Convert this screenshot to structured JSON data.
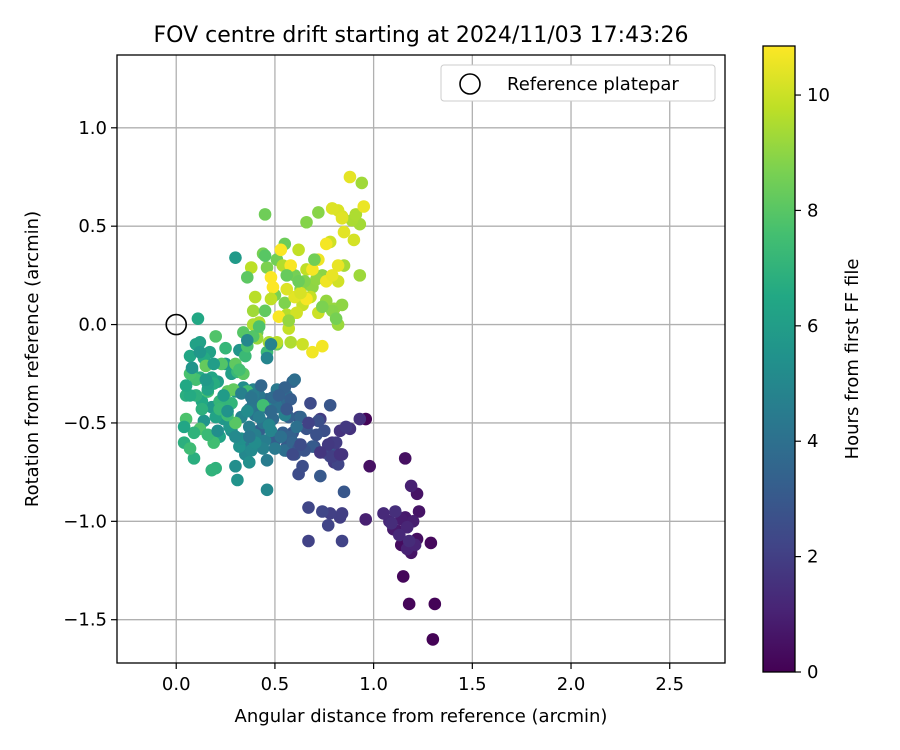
{
  "chart_data": {
    "type": "scatter",
    "title": "FOV centre drift starting at 2024/11/03 17:43:26",
    "xlabel": "Angular distance from reference (arcmin)",
    "ylabel": "Rotation from reference (arcmin)",
    "xlim": [
      -0.3,
      2.78
    ],
    "ylim": [
      -1.72,
      1.37
    ],
    "xticks": [
      0.0,
      0.5,
      1.0,
      1.5,
      2.0,
      2.5
    ],
    "xtick_labels": [
      "0.0",
      "0.5",
      "1.0",
      "1.5",
      "2.0",
      "2.5"
    ],
    "yticks": [
      1.0,
      0.5,
      0.0,
      -0.5,
      -1.0,
      -1.5
    ],
    "ytick_labels": [
      "1.0",
      "0.5",
      "0.0",
      "−0.5",
      "−1.0",
      "−1.5"
    ],
    "grid": true,
    "legend": {
      "position": "top-right",
      "entries": [
        "Reference platepar"
      ]
    },
    "reference": {
      "x": 0.0,
      "y": 0.0,
      "label": "Reference platepar"
    },
    "colorbar": {
      "label": "Hours from first FF file",
      "range": [
        0,
        10.85
      ],
      "ticks": [
        0,
        2,
        4,
        6,
        8,
        10
      ],
      "tick_labels": [
        "0",
        "2",
        "4",
        "6",
        "8",
        "10"
      ],
      "colormap": "viridis"
    },
    "points": [
      [
        0.96,
        -0.48,
        0.1
      ],
      [
        1.3,
        -1.6,
        0.05
      ],
      [
        1.31,
        -1.42,
        0.1
      ],
      [
        1.18,
        -1.42,
        0.15
      ],
      [
        1.15,
        -1.28,
        0.2
      ],
      [
        1.29,
        -1.11,
        0.25
      ],
      [
        1.2,
        -1.12,
        0.3
      ],
      [
        1.14,
        -1.12,
        0.35
      ],
      [
        1.22,
        -1.09,
        0.4
      ],
      [
        1.16,
        -0.68,
        0.45
      ],
      [
        0.98,
        -0.72,
        0.5
      ],
      [
        1.22,
        -0.86,
        0.55
      ],
      [
        1.23,
        -0.95,
        0.6
      ],
      [
        1.19,
        -1.16,
        0.6
      ],
      [
        1.12,
        -1.05,
        0.7
      ],
      [
        1.16,
        -0.98,
        0.75
      ],
      [
        1.1,
        -1.04,
        0.8
      ],
      [
        1.14,
        -0.99,
        0.85
      ],
      [
        1.2,
        -1.0,
        0.9
      ],
      [
        0.96,
        -0.99,
        0.95
      ],
      [
        1.19,
        -0.82,
        1.0
      ],
      [
        1.17,
        -1.14,
        1.05
      ],
      [
        1.21,
        -1.12,
        1.1
      ],
      [
        1.17,
        -1.03,
        1.15
      ],
      [
        1.08,
        -1.0,
        1.2
      ],
      [
        1.13,
        -1.07,
        1.25
      ],
      [
        1.05,
        -0.96,
        1.3
      ],
      [
        1.18,
        -1.1,
        1.35
      ],
      [
        1.09,
        -1.01,
        1.4
      ],
      [
        1.11,
        -0.95,
        1.45
      ],
      [
        0.93,
        -0.48,
        1.5
      ],
      [
        0.88,
        -0.53,
        1.55
      ],
      [
        0.83,
        -0.54,
        1.6
      ],
      [
        0.84,
        -0.66,
        1.65
      ],
      [
        0.79,
        -0.6,
        1.7
      ],
      [
        0.75,
        -0.65,
        1.75
      ],
      [
        0.86,
        -0.52,
        1.8
      ],
      [
        0.8,
        -0.7,
        1.85
      ],
      [
        0.73,
        -0.48,
        1.9
      ],
      [
        0.83,
        -0.98,
        1.95
      ],
      [
        0.84,
        -0.96,
        2.0
      ],
      [
        0.78,
        -0.96,
        2.05
      ],
      [
        0.67,
        -1.1,
        2.1
      ],
      [
        0.84,
        -1.1,
        2.15
      ],
      [
        0.77,
        -1.02,
        2.2
      ],
      [
        0.67,
        -0.93,
        2.25
      ],
      [
        0.74,
        -0.95,
        2.3
      ],
      [
        0.82,
        -0.71,
        2.35
      ],
      [
        0.8,
        -0.65,
        2.4
      ],
      [
        0.68,
        -0.4,
        2.45
      ],
      [
        0.62,
        -0.76,
        2.5
      ],
      [
        0.64,
        -0.72,
        2.55
      ],
      [
        0.75,
        -0.54,
        2.6
      ],
      [
        0.7,
        -0.62,
        2.65
      ],
      [
        0.59,
        -0.55,
        2.7
      ],
      [
        0.62,
        -0.47,
        2.75
      ],
      [
        0.66,
        -0.53,
        2.8
      ],
      [
        0.6,
        -0.66,
        2.85
      ],
      [
        0.78,
        -0.41,
        2.9
      ],
      [
        0.85,
        -0.85,
        2.95
      ],
      [
        0.73,
        -0.77,
        3.0
      ],
      [
        0.77,
        -0.65,
        3.05
      ],
      [
        0.56,
        -0.62,
        3.1
      ],
      [
        0.62,
        -0.61,
        3.15
      ],
      [
        0.5,
        -0.59,
        3.2
      ],
      [
        0.54,
        -0.55,
        3.25
      ],
      [
        0.42,
        -0.54,
        3.3
      ],
      [
        0.57,
        -0.47,
        3.35
      ],
      [
        0.58,
        -0.57,
        3.4
      ],
      [
        0.59,
        -0.29,
        3.45
      ],
      [
        0.63,
        -0.47,
        3.5
      ],
      [
        0.55,
        -0.42,
        3.55
      ],
      [
        0.48,
        -0.38,
        3.6
      ],
      [
        0.53,
        -0.4,
        3.65
      ],
      [
        0.46,
        -0.38,
        3.7
      ],
      [
        0.49,
        -0.48,
        3.75
      ],
      [
        0.51,
        -0.36,
        3.8
      ],
      [
        0.56,
        -0.36,
        3.85
      ],
      [
        0.6,
        -0.28,
        3.9
      ],
      [
        0.55,
        -0.64,
        3.95
      ],
      [
        0.61,
        -0.52,
        4.0
      ],
      [
        0.43,
        -0.42,
        4.05
      ],
      [
        0.4,
        -0.46,
        4.1
      ],
      [
        0.44,
        -0.5,
        4.15
      ],
      [
        0.39,
        -0.4,
        4.2
      ],
      [
        0.42,
        -0.36,
        4.25
      ],
      [
        0.37,
        -0.43,
        4.3
      ],
      [
        0.47,
        -0.43,
        4.35
      ],
      [
        0.51,
        -0.33,
        4.4
      ],
      [
        0.36,
        -0.62,
        4.45
      ],
      [
        0.46,
        -0.69,
        4.5
      ],
      [
        0.45,
        -0.59,
        4.55
      ],
      [
        0.37,
        -0.52,
        4.6
      ],
      [
        0.4,
        -0.56,
        4.65
      ],
      [
        0.55,
        -0.46,
        4.7
      ],
      [
        0.44,
        -0.63,
        4.75
      ],
      [
        0.39,
        -0.33,
        4.8
      ],
      [
        0.48,
        -0.54,
        4.85
      ],
      [
        0.33,
        -0.47,
        4.9
      ],
      [
        0.47,
        -0.51,
        4.95
      ],
      [
        0.46,
        -0.84,
        5.0
      ],
      [
        0.35,
        -0.66,
        5.05
      ],
      [
        0.38,
        -0.64,
        5.1
      ],
      [
        0.5,
        -0.4,
        5.15
      ],
      [
        0.4,
        -0.6,
        5.2
      ],
      [
        0.34,
        -0.32,
        5.25
      ],
      [
        0.3,
        -0.72,
        5.3
      ],
      [
        0.37,
        -0.7,
        5.35
      ],
      [
        0.28,
        -0.54,
        5.4
      ],
      [
        0.32,
        -0.62,
        5.45
      ],
      [
        0.31,
        -0.79,
        5.5
      ],
      [
        0.32,
        -0.13,
        5.55
      ],
      [
        0.14,
        -0.49,
        5.6
      ],
      [
        0.24,
        -0.48,
        5.65
      ],
      [
        0.21,
        -0.41,
        5.7
      ],
      [
        0.27,
        -0.52,
        5.75
      ],
      [
        0.18,
        -0.42,
        5.8
      ],
      [
        0.3,
        0.34,
        5.85
      ],
      [
        0.25,
        -0.2,
        5.9
      ],
      [
        0.3,
        -0.34,
        5.95
      ],
      [
        0.21,
        -0.29,
        6.0
      ],
      [
        0.28,
        -0.25,
        6.05
      ],
      [
        0.16,
        -0.34,
        6.1
      ],
      [
        0.12,
        -0.09,
        6.15
      ],
      [
        0.17,
        -0.14,
        6.2
      ],
      [
        0.2,
        -0.47,
        6.25
      ],
      [
        0.22,
        -0.57,
        6.3
      ],
      [
        0.18,
        -0.27,
        6.35
      ],
      [
        0.07,
        -0.16,
        6.4
      ],
      [
        0.11,
        0.03,
        6.45
      ],
      [
        0.13,
        -0.39,
        6.5
      ],
      [
        0.08,
        -0.23,
        6.55
      ],
      [
        0.14,
        -0.17,
        6.6
      ],
      [
        0.19,
        -0.3,
        6.7
      ],
      [
        0.12,
        -0.27,
        6.75
      ],
      [
        0.09,
        -0.68,
        6.8
      ],
      [
        0.04,
        -0.6,
        6.85
      ],
      [
        0.1,
        -0.36,
        6.9
      ],
      [
        0.2,
        -0.73,
        6.95
      ],
      [
        0.18,
        -0.74,
        7.0
      ],
      [
        0.24,
        -0.43,
        7.05
      ],
      [
        0.22,
        -0.39,
        7.1
      ],
      [
        0.25,
        -0.12,
        7.15
      ],
      [
        0.31,
        -0.24,
        7.2
      ],
      [
        0.35,
        -0.16,
        7.3
      ],
      [
        0.46,
        -0.14,
        7.35
      ],
      [
        0.07,
        -0.63,
        7.4
      ],
      [
        0.36,
        -0.34,
        7.45
      ],
      [
        0.19,
        -0.6,
        7.5
      ],
      [
        0.16,
        -0.34,
        7.55
      ],
      [
        0.1,
        -0.28,
        7.6
      ],
      [
        0.07,
        -0.25,
        7.7
      ],
      [
        0.05,
        -0.48,
        7.75
      ],
      [
        0.12,
        -0.53,
        7.8
      ],
      [
        0.2,
        -0.06,
        7.85
      ],
      [
        0.23,
        -0.2,
        7.9
      ],
      [
        0.34,
        -0.04,
        7.95
      ],
      [
        0.3,
        -0.5,
        8.0
      ],
      [
        0.34,
        -0.25,
        8.05
      ],
      [
        0.26,
        -0.34,
        8.1
      ],
      [
        0.3,
        -0.2,
        8.15
      ],
      [
        0.29,
        -0.33,
        8.2
      ],
      [
        0.15,
        -0.21,
        8.25
      ],
      [
        0.41,
        -0.04,
        8.3
      ],
      [
        0.51,
        -0.1,
        8.35
      ],
      [
        0.55,
        0.41,
        8.4
      ],
      [
        0.45,
        0.56,
        8.45
      ],
      [
        0.51,
        0.33,
        8.5
      ],
      [
        0.6,
        0.25,
        8.55
      ],
      [
        0.44,
        0.36,
        8.6
      ],
      [
        0.5,
        0.15,
        8.65
      ],
      [
        0.46,
        0.29,
        8.7
      ],
      [
        0.55,
        0.11,
        8.75
      ],
      [
        0.63,
        0.18,
        8.8
      ],
      [
        0.66,
        0.52,
        8.85
      ],
      [
        0.72,
        0.57,
        8.9
      ],
      [
        0.74,
        0.25,
        8.95
      ],
      [
        0.69,
        0.19,
        9.0
      ],
      [
        0.71,
        0.23,
        9.05
      ],
      [
        0.76,
        0.12,
        9.1
      ],
      [
        0.8,
        0.08,
        9.15
      ],
      [
        0.82,
        0.0,
        9.2
      ],
      [
        0.93,
        0.25,
        9.25
      ],
      [
        0.94,
        0.72,
        9.3
      ],
      [
        0.93,
        0.51,
        9.35
      ],
      [
        0.85,
        0.3,
        9.4
      ],
      [
        0.89,
        0.53,
        9.45
      ],
      [
        0.91,
        0.56,
        9.5
      ],
      [
        0.58,
        -0.09,
        9.55
      ],
      [
        0.54,
        0.3,
        9.6
      ],
      [
        0.56,
        0.05,
        9.65
      ],
      [
        0.51,
        -0.09,
        9.7
      ],
      [
        0.38,
        0.29,
        9.75
      ],
      [
        0.66,
        0.28,
        9.8
      ],
      [
        0.62,
        0.38,
        9.85
      ],
      [
        0.68,
        0.14,
        9.9
      ],
      [
        0.64,
        0.1,
        9.95
      ],
      [
        0.72,
        0.06,
        10.0
      ],
      [
        0.78,
        0.42,
        10.05
      ],
      [
        0.82,
        0.22,
        10.1
      ],
      [
        0.9,
        0.43,
        10.15
      ],
      [
        0.84,
        0.55,
        10.2
      ],
      [
        0.82,
        0.58,
        10.25
      ],
      [
        0.79,
        0.59,
        10.3
      ],
      [
        0.84,
        0.54,
        10.35
      ],
      [
        0.85,
        0.47,
        10.4
      ],
      [
        0.88,
        0.75,
        10.45
      ],
      [
        0.82,
        0.3,
        10.5
      ],
      [
        0.95,
        0.6,
        10.55
      ],
      [
        0.72,
        0.33,
        10.6
      ],
      [
        0.76,
        0.22,
        10.62
      ],
      [
        0.69,
        -0.14,
        10.65
      ],
      [
        0.74,
        -0.11,
        10.68
      ],
      [
        0.76,
        0.41,
        10.7
      ],
      [
        0.69,
        0.28,
        10.72
      ],
      [
        0.66,
        0.13,
        10.75
      ],
      [
        0.58,
        0.3,
        10.77
      ],
      [
        0.52,
        0.04,
        10.79
      ],
      [
        0.53,
        0.38,
        10.8
      ],
      [
        0.48,
        0.24,
        10.82
      ],
      [
        0.49,
        0.19,
        10.84
      ],
      [
        0.79,
        0.25,
        10.5
      ],
      [
        0.6,
        0.14,
        10.4
      ],
      [
        0.56,
        0.18,
        10.3
      ],
      [
        0.63,
        0.16,
        10.2
      ],
      [
        0.61,
        0.06,
        10.1
      ],
      [
        0.64,
        -0.1,
        10.0
      ],
      [
        0.57,
        -0.02,
        9.9
      ],
      [
        0.48,
        0.13,
        9.8
      ],
      [
        0.4,
        0.14,
        9.7
      ],
      [
        0.42,
        0.01,
        9.6
      ],
      [
        0.39,
        0.0,
        9.5
      ],
      [
        0.47,
        -0.09,
        9.4
      ],
      [
        0.39,
        0.07,
        9.3
      ],
      [
        0.41,
        -0.07,
        9.2
      ],
      [
        0.57,
        0.02,
        9.1
      ],
      [
        0.84,
        0.1,
        9.0
      ],
      [
        0.79,
        0.07,
        8.9
      ],
      [
        0.65,
        0.22,
        8.8
      ],
      [
        0.74,
        0.09,
        8.7
      ],
      [
        0.81,
        0.03,
        8.6
      ],
      [
        0.7,
        0.33,
        8.5
      ],
      [
        0.62,
        0.22,
        8.4
      ],
      [
        0.56,
        0.25,
        8.3
      ],
      [
        0.45,
        0.07,
        8.2
      ],
      [
        0.36,
        0.24,
        8.1
      ],
      [
        0.45,
        0.35,
        8.0
      ],
      [
        0.39,
        -0.06,
        7.9
      ],
      [
        0.42,
        -0.01,
        7.8
      ],
      [
        0.36,
        -0.11,
        7.7
      ],
      [
        0.32,
        -0.23,
        7.6
      ],
      [
        0.44,
        -0.41,
        7.5
      ],
      [
        0.26,
        -0.46,
        7.4
      ],
      [
        0.16,
        -0.56,
        7.3
      ],
      [
        0.22,
        -0.43,
        7.2
      ],
      [
        0.28,
        -0.4,
        7.1
      ],
      [
        0.09,
        -0.55,
        7.0
      ],
      [
        0.13,
        -0.43,
        6.9
      ],
      [
        0.05,
        -0.36,
        6.8
      ],
      [
        0.07,
        -0.36,
        6.6
      ],
      [
        0.05,
        -0.31,
        6.5
      ],
      [
        0.04,
        -0.52,
        6.4
      ],
      [
        0.16,
        -0.33,
        6.3
      ],
      [
        0.1,
        -0.1,
        6.2
      ],
      [
        0.16,
        -0.3,
        6.1
      ],
      [
        0.19,
        -0.2,
        6.0
      ],
      [
        0.24,
        -0.36,
        5.9
      ],
      [
        0.15,
        -0.28,
        5.8
      ],
      [
        0.12,
        -0.14,
        5.7
      ],
      [
        0.08,
        -0.22,
        5.6
      ],
      [
        0.26,
        -0.44,
        5.5
      ],
      [
        0.33,
        -0.58,
        5.4
      ],
      [
        0.21,
        -0.54,
        5.3
      ],
      [
        0.36,
        -0.44,
        5.2
      ],
      [
        0.3,
        -0.57,
        5.1
      ],
      [
        0.36,
        -0.08,
        5.0
      ],
      [
        0.46,
        -0.17,
        4.9
      ],
      [
        0.48,
        -0.1,
        4.8
      ],
      [
        0.33,
        -0.35,
        4.7
      ],
      [
        0.42,
        -0.47,
        4.6
      ],
      [
        0.39,
        -0.36,
        4.5
      ],
      [
        0.5,
        -0.63,
        4.4
      ],
      [
        0.37,
        -0.57,
        4.3
      ],
      [
        0.38,
        -0.37,
        4.2
      ],
      [
        0.51,
        -0.42,
        4.1
      ],
      [
        0.53,
        -0.57,
        4.0
      ],
      [
        0.56,
        -0.64,
        3.9
      ],
      [
        0.49,
        -0.37,
        3.8
      ],
      [
        0.48,
        -0.44,
        3.7
      ],
      [
        0.43,
        -0.31,
        3.6
      ],
      [
        0.59,
        -0.6,
        3.5
      ],
      [
        0.55,
        -0.32,
        3.4
      ],
      [
        0.52,
        -0.36,
        3.3
      ],
      [
        0.58,
        -0.38,
        3.2
      ],
      [
        0.69,
        -0.62,
        3.1
      ],
      [
        0.56,
        -0.43,
        3.0
      ],
      [
        0.62,
        -0.63,
        2.9
      ],
      [
        0.65,
        -0.64,
        2.8
      ],
      [
        0.71,
        -0.56,
        2.7
      ],
      [
        0.72,
        -0.49,
        2.6
      ],
      [
        0.63,
        -0.61,
        2.5
      ],
      [
        0.59,
        -0.66,
        2.4
      ],
      [
        0.78,
        -0.67,
        2.3
      ],
      [
        0.82,
        -0.71,
        2.2
      ],
      [
        0.67,
        -0.5,
        2.1
      ],
      [
        0.79,
        -0.67,
        2.0
      ],
      [
        0.81,
        -0.6,
        1.9
      ],
      [
        0.77,
        -0.61,
        1.8
      ],
      [
        0.73,
        -0.65,
        1.7
      ],
      [
        0.83,
        -0.66,
        1.6
      ]
    ]
  }
}
